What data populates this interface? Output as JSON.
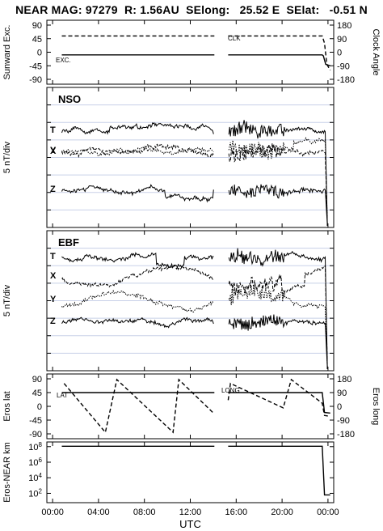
{
  "header": {
    "title": "NEAR MAG: 97279  R: 1.56AU  SElong:   25.52 E  SElat:   -0.51 N"
  },
  "x_axis": {
    "label": "UTC",
    "tick_labels": [
      "00:00",
      "04:00",
      "08:00",
      "12:00",
      "16:00",
      "20:00",
      "00:00"
    ],
    "tick_hours": [
      0,
      4,
      8,
      12,
      16,
      20,
      24
    ],
    "range_hours": [
      -0.5,
      24.5
    ],
    "data_gap_hours": [
      14.1,
      15.3
    ]
  },
  "colors": {
    "line": "#000000",
    "grid": "#c8d0e8",
    "frame": "#000000"
  },
  "chart_data": [
    {
      "id": "angles",
      "type": "line",
      "ylabel_left": "Sunward Exc.",
      "ylabel_right": "Clock Angle",
      "ylim_left": [
        -90,
        90
      ],
      "ylim_right": [
        -180,
        180
      ],
      "left_ticks": [
        "90",
        "45",
        "0",
        "-45",
        "-90"
      ],
      "right_ticks": [
        "180",
        "90",
        "0",
        "-90",
        "-180"
      ],
      "annotations": [
        "CLK",
        "EXC."
      ],
      "series": [
        {
          "name": "EXC.",
          "style": "solid",
          "x": [
            0.8,
            14.1,
            15.3,
            23.5,
            23.6,
            23.8,
            24.2
          ],
          "y": [
            -9,
            -9,
            -9,
            -9,
            -12,
            -40,
            -45
          ]
        },
        {
          "name": "CLK",
          "style": "dashed",
          "axis": "right",
          "x": [
            0.8,
            14.1,
            15.3,
            23.5,
            23.7,
            23.9,
            24.2
          ],
          "y": [
            108,
            108,
            108,
            108,
            60,
            -80,
            -120
          ]
        }
      ]
    },
    {
      "id": "nso",
      "type": "line",
      "panel_label": "NSO",
      "ylabel_left": "5 nT/div",
      "trace_labels": [
        "T",
        "X",
        "Y",
        "Z"
      ]
    },
    {
      "id": "ebf",
      "type": "line",
      "panel_label": "EBF",
      "ylabel_left": "5 nT/div",
      "trace_labels": [
        "T",
        "X",
        "Y",
        "Z"
      ]
    },
    {
      "id": "eros",
      "type": "line",
      "ylabel_left": "Eros lat",
      "ylabel_right": "Eros long",
      "ylim_left": [
        -90,
        90
      ],
      "ylim_right": [
        -180,
        180
      ],
      "left_ticks": [
        "90",
        "45",
        "0",
        "-45",
        "-90"
      ],
      "right_ticks": [
        "180",
        "90",
        "0",
        "-90",
        "-180"
      ],
      "annotations": [
        "LAT",
        "LONG"
      ],
      "series": [
        {
          "name": "LAT",
          "style": "solid",
          "x": [
            0.8,
            14.1,
            15.3,
            23.5,
            23.7,
            24.2
          ],
          "y": [
            45,
            45,
            45,
            45,
            -20,
            -22
          ]
        },
        {
          "name": "LONG",
          "style": "dashed",
          "axis": "right",
          "x": [
            1.0,
            4.6,
            5.6,
            10.5,
            11.0,
            14.1,
            15.3,
            15.5,
            20.1,
            20.8,
            23.5,
            23.7,
            24.2
          ],
          "y": [
            150,
            -170,
            175,
            -170,
            175,
            -50,
            40,
            150,
            -10,
            175,
            20,
            -60,
            -65
          ]
        }
      ]
    },
    {
      "id": "distance",
      "type": "line",
      "ylabel_left": "Eros-NEAR km",
      "yscale": "log",
      "ylim_log10": [
        0.8,
        8.6
      ],
      "left_ticks": [
        "10^8",
        "10^6",
        "10^4",
        "10^2"
      ],
      "series": [
        {
          "name": "",
          "style": "solid",
          "x": [
            0.8,
            14.1,
            15.3,
            23.5,
            23.7,
            24.2
          ],
          "y_log10": [
            8.05,
            8.05,
            8.05,
            8.05,
            1.8,
            1.8
          ]
        }
      ]
    }
  ]
}
